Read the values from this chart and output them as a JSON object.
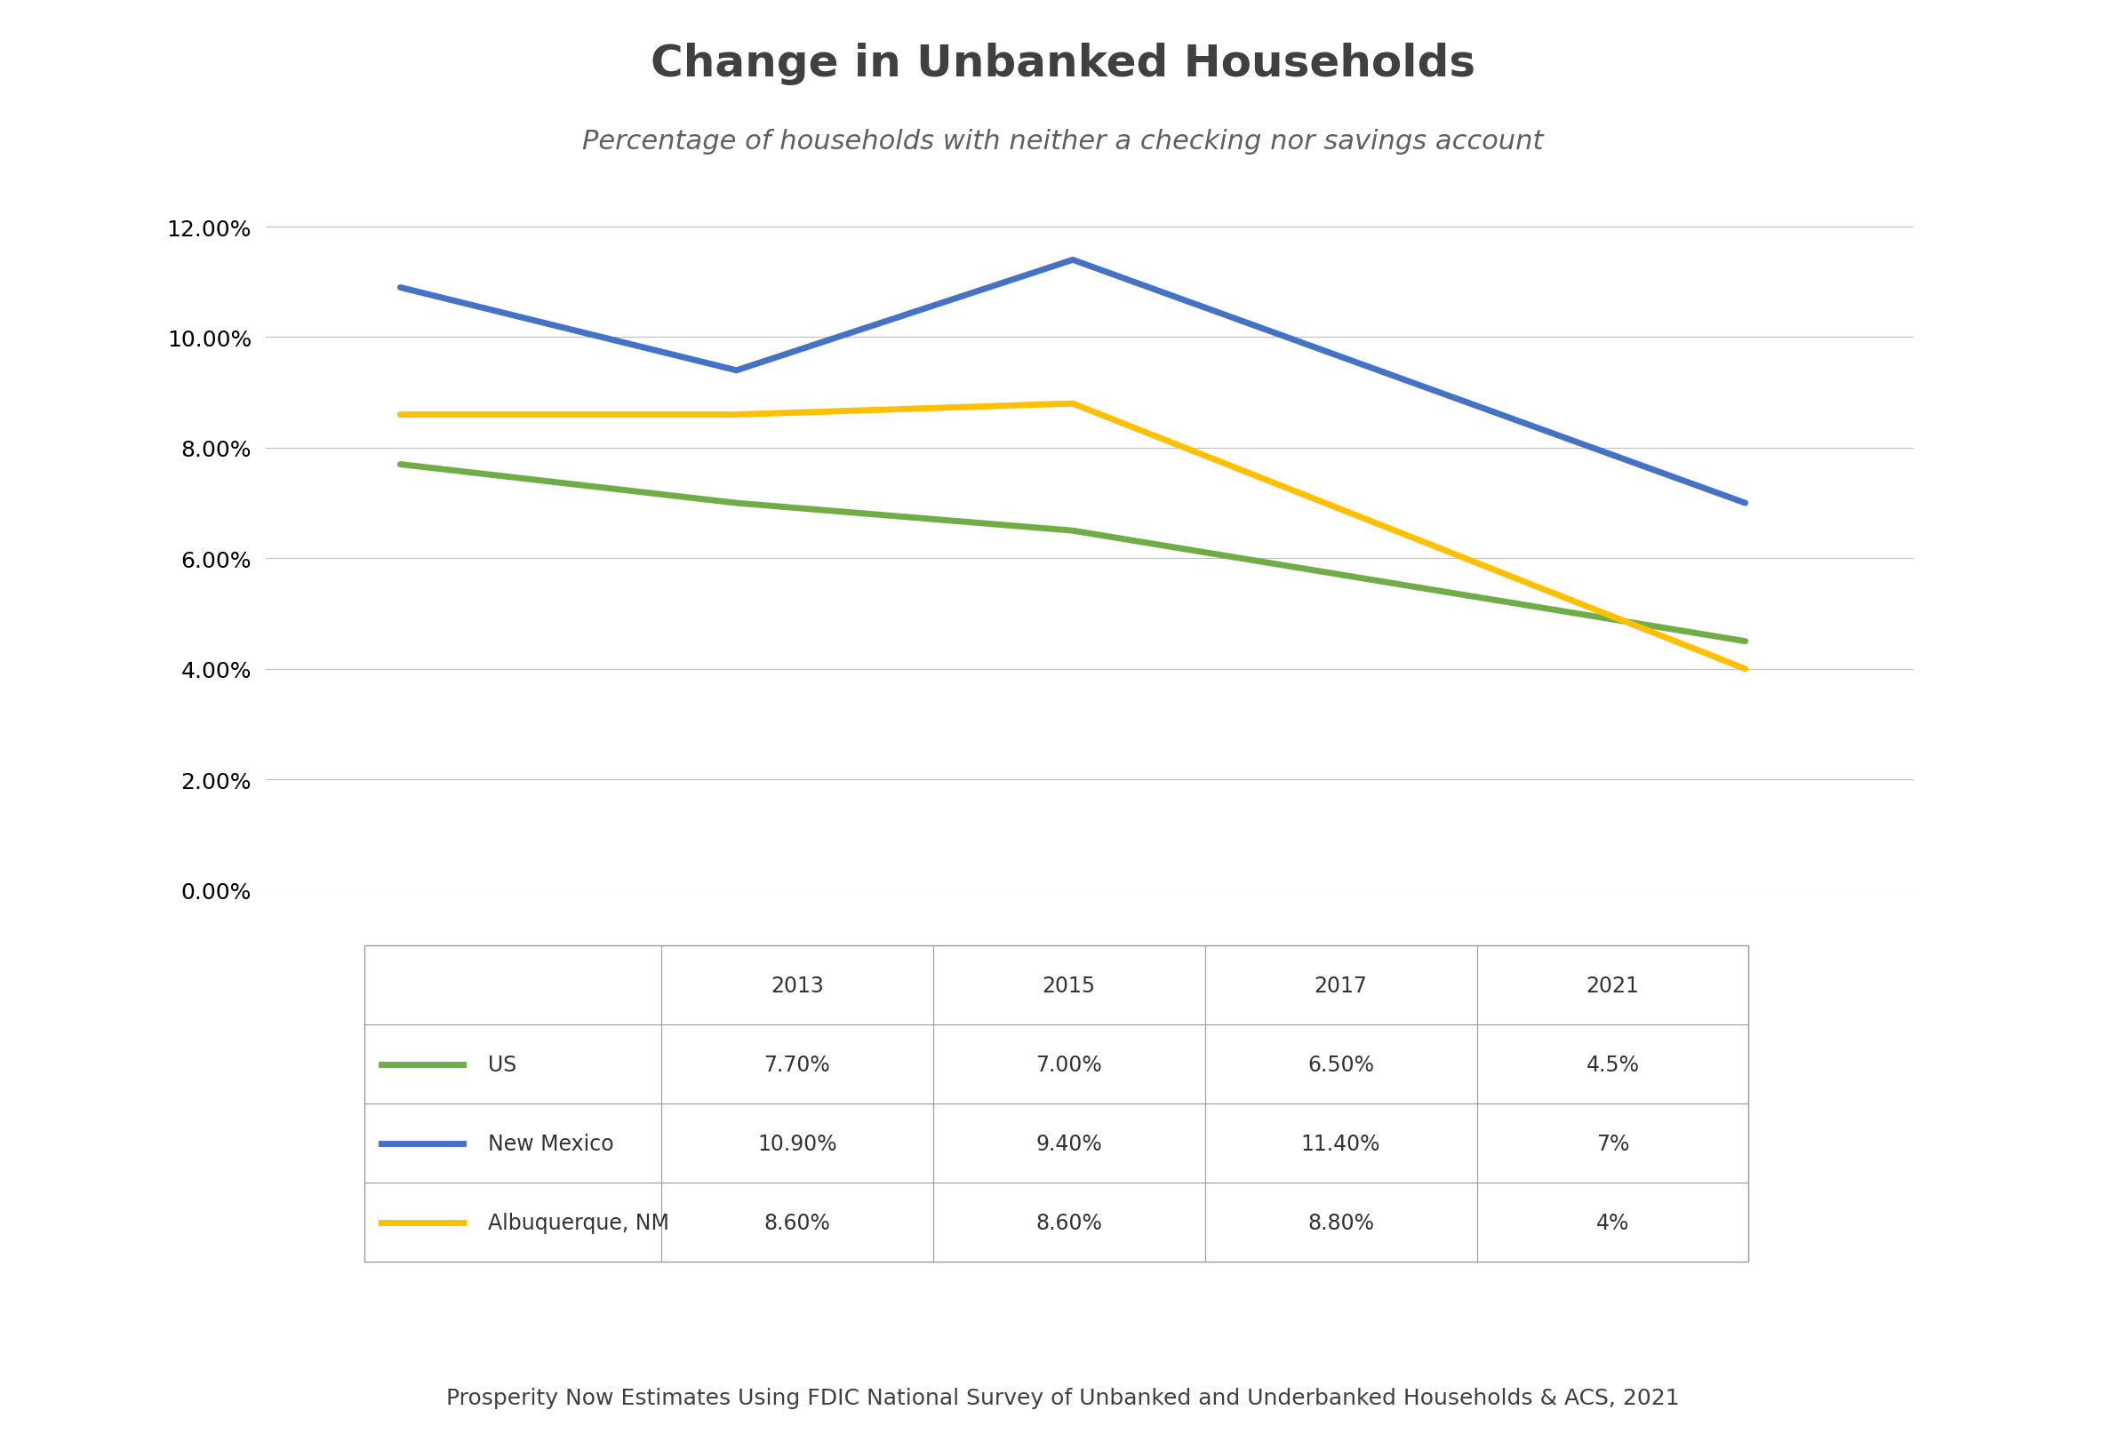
{
  "title": "Change in Unbanked Households",
  "subtitle": "Percentage of households with neither a checking nor savings account",
  "years": [
    2013,
    2015,
    2017,
    2021
  ],
  "series": [
    {
      "label": "US",
      "values": [
        0.077,
        0.07,
        0.065,
        0.045
      ],
      "color": "#70ad47",
      "linewidth": 5
    },
    {
      "label": "New Mexico",
      "values": [
        0.109,
        0.094,
        0.114,
        0.07
      ],
      "color": "#4472c4",
      "linewidth": 5
    },
    {
      "label": "Albuquerque, NM",
      "values": [
        0.086,
        0.086,
        0.088,
        0.04
      ],
      "color": "#ffc000",
      "linewidth": 5
    }
  ],
  "table_data": {
    "headers": [
      "",
      "2013",
      "2015",
      "2017",
      "2021"
    ],
    "rows": [
      [
        "US",
        "7.70%",
        "7.00%",
        "6.50%",
        "4.5%"
      ],
      [
        "New Mexico",
        "10.90%",
        "9.40%",
        "11.40%",
        "7%"
      ],
      [
        "Albuquerque, NM",
        "8.60%",
        "8.60%",
        "8.80%",
        "4%"
      ]
    ]
  },
  "table_colors": [
    "#70ad47",
    "#4472c4",
    "#ffc000"
  ],
  "footer": "Prosperity Now Estimates Using FDIC National Survey of Unbanked and Underbanked Households & ACS, 2021",
  "ylim": [
    0.0,
    0.13
  ],
  "yticks": [
    0.0,
    0.02,
    0.04,
    0.06,
    0.08,
    0.1,
    0.12
  ],
  "background_color": "#ffffff",
  "title_fontsize": 36,
  "subtitle_fontsize": 22,
  "footer_fontsize": 18
}
